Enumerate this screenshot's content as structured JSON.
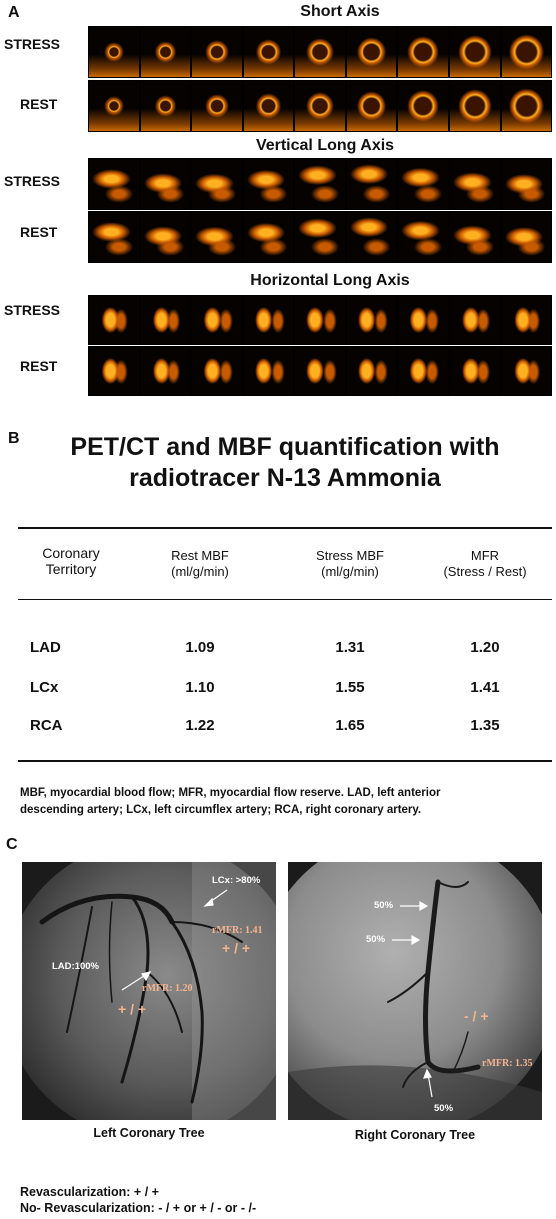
{
  "panels": [
    "A",
    "B",
    "C"
  ],
  "panel_a": {
    "sections": [
      {
        "title": "Short Axis",
        "rows": [
          "STRESS",
          "REST"
        ]
      },
      {
        "title": "Vertical Long  Axis",
        "rows": [
          "STRESS",
          "REST"
        ]
      },
      {
        "title": "Horizontal Long  Axis",
        "rows": [
          "STRESS",
          "REST"
        ]
      }
    ],
    "frames_per_row": 9,
    "colors": {
      "hot": "#ffb020",
      "mid": "#c85a00",
      "dark": "#3a1400"
    }
  },
  "panel_b": {
    "title_line1": "PET/CT and MBF quantification with",
    "title_line2": "radiotracer N-13 Ammonia",
    "headers": [
      [
        "Coronary",
        "Territory"
      ],
      [
        "Rest MBF",
        "(ml/g/min)"
      ],
      [
        "Stress MBF",
        "(ml/g/min)"
      ],
      [
        "MFR",
        "(Stress / Rest)"
      ]
    ],
    "rows": [
      [
        "LAD",
        "1.09",
        "1.31",
        "1.20"
      ],
      [
        "LCx",
        "1.10",
        "1.55",
        "1.41"
      ],
      [
        "RCA",
        "1.22",
        "1.65",
        "1.35"
      ]
    ],
    "footnote_line1": "MBF, myocardial blood flow; MFR, myocardial flow reserve. LAD, left anterior",
    "footnote_line2": "descending artery; LCx, left circumflex artery; RCA, right coronary artery."
  },
  "panel_c": {
    "left": {
      "caption": "Left Coronary Tree",
      "labels": {
        "lcx": "LCx: >80%",
        "lad": "LAD:100%",
        "rmfr_lcx": "rMFR: 1.41",
        "rmfr_lad": "rMFR: 1.20",
        "sign_lcx": "+ / +",
        "sign_lad": "+ / +"
      }
    },
    "right": {
      "caption": "Right Coronary Tree",
      "labels": {
        "s1": "50%",
        "s2": "50%",
        "s3": "50%",
        "sign": "-  / +",
        "rmfr": "rMFR: 1.35"
      }
    },
    "legend_line1": "Revascularization: + / +",
    "legend_line2": "No- Revascularization: - / + or + / - or - /-"
  }
}
